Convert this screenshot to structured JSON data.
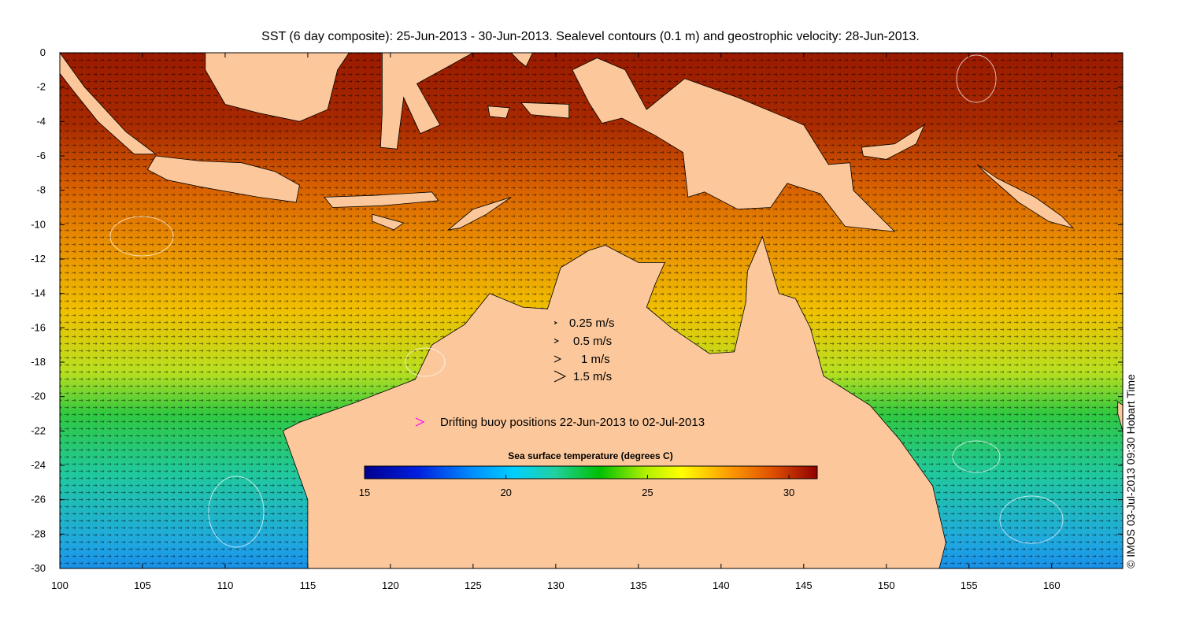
{
  "title": "SST (6 day composite): 25-Jun-2013 - 30-Jun-2013. Sealevel contours (0.1 m) and geostrophic velocity: 28-Jun-2013.",
  "credit": "© IMOS 03-Jul-2013 09:30 Hobart Time",
  "x_ticks": [
    "100",
    "105",
    "110",
    "115",
    "120",
    "125",
    "130",
    "135",
    "140",
    "145",
    "150",
    "155",
    "160"
  ],
  "y_ticks": [
    "0",
    "-2",
    "-4",
    "-6",
    "-8",
    "-10",
    "-12",
    "-14",
    "-16",
    "-18",
    "-20",
    "-22",
    "-24",
    "-26",
    "-28",
    "-30"
  ],
  "velocity_legend": [
    {
      "label": "0.25 m/s"
    },
    {
      "label": "0.5 m/s"
    },
    {
      "label": "1 m/s"
    },
    {
      "label": "1.5 m/s"
    }
  ],
  "buoy_legend": {
    "label": "Drifting buoy positions 22-Jun-2013 to 02-Jul-2013",
    "color": "#ff00ff"
  },
  "colorbar": {
    "title": "Sea surface temperature (degrees C)",
    "min": 15,
    "max": 31,
    "ticks": [
      "15",
      "20",
      "25",
      "30"
    ],
    "colors": [
      "#00008f",
      "#0000ff",
      "#00bfff",
      "#20c8a0",
      "#00c000",
      "#80e000",
      "#ffff00",
      "#ffa000",
      "#e06000",
      "#a01010",
      "#800000"
    ]
  },
  "land_color": "#fcc89b",
  "map": {
    "lon_range": [
      100,
      164.3
    ],
    "lat_range": [
      -30,
      0
    ]
  }
}
